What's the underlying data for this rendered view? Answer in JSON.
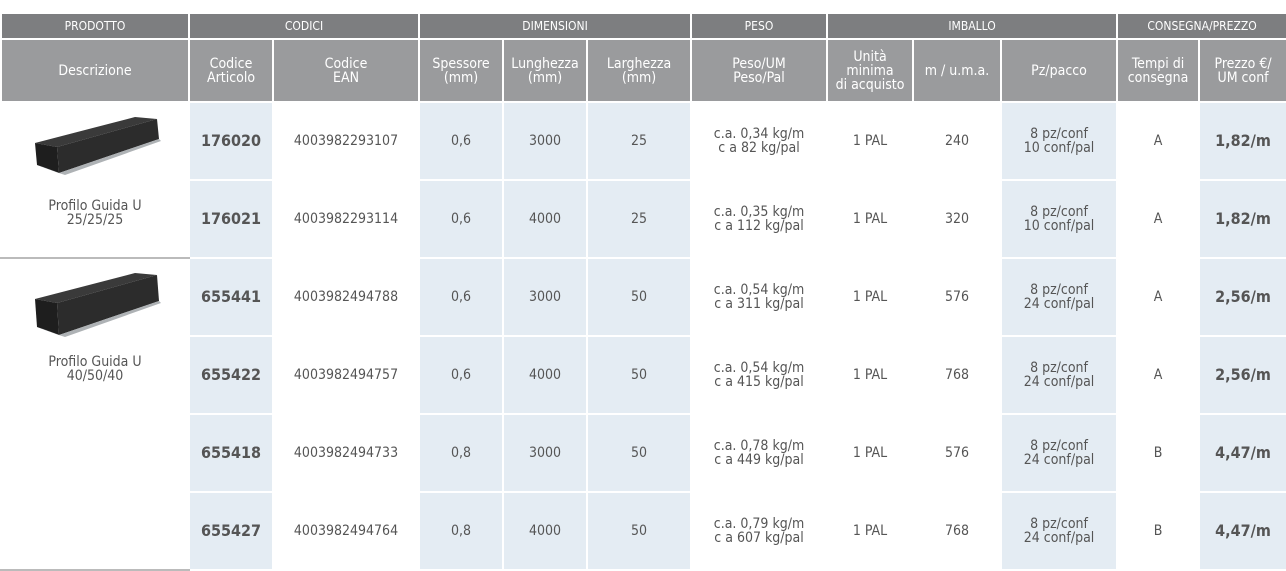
{
  "header_groups": [
    "PRODOTTO",
    "CODICI",
    "DIMENSIONI",
    "PESO",
    "IMBALLO",
    "CONSEGNA/PREZZO"
  ],
  "columns": [
    [
      "Descrizione"
    ],
    [
      "Codice",
      "Articolo"
    ],
    [
      "Codice",
      "EAN"
    ],
    [
      "Spessore",
      "(mm)"
    ],
    [
      "Lunghezza",
      "(mm)"
    ],
    [
      "Larghezza",
      "(mm)"
    ],
    [
      "Peso/UM",
      "Peso/Pal"
    ],
    [
      "Unità",
      "minima",
      "di acquisto"
    ],
    [
      "m / u.m.a."
    ],
    [
      "Pz/pacco"
    ],
    [
      "Tempi di",
      "consegna"
    ],
    [
      "Prezzo €/",
      "UM conf"
    ]
  ],
  "products": [
    {
      "description": [
        "Profilo Guida U",
        "25/25/25"
      ],
      "rows": [
        [
          "176020",
          "4003982293107",
          "0,6",
          "3000",
          "25",
          [
            "c.a. 0,34 kg/m",
            "c a 82 kg/pal"
          ],
          "1 PAL",
          "240",
          [
            "8 pz/conf",
            "10 conf/pal"
          ],
          "A",
          "1,82/m"
        ],
        [
          "176021",
          "4003982293114",
          "0,6",
          "4000",
          "25",
          [
            "c.a. 0,35 kg/m",
            "c a 112 kg/pal"
          ],
          "1 PAL",
          "320",
          [
            "8 pz/conf",
            "10 conf/pal"
          ],
          "A",
          "1,82/m"
        ]
      ]
    },
    {
      "description": [
        "Profilo Guida U",
        "40/50/40"
      ],
      "rows": [
        [
          "655441",
          "4003982494788",
          "0,6",
          "3000",
          "50",
          [
            "c.a. 0,54 kg/m",
            "c a 311 kg/pal"
          ],
          "1 PAL",
          "576",
          [
            "8 pz/conf",
            "24 conf/pal"
          ],
          "A",
          "2,56/m"
        ],
        [
          "655422",
          "4003982494757",
          "0,6",
          "4000",
          "50",
          [
            "c.a. 0,54 kg/m",
            "c a 415 kg/pal"
          ],
          "1 PAL",
          "768",
          [
            "8 pz/conf",
            "24 conf/pal"
          ],
          "A",
          "2,56/m"
        ],
        [
          "655418",
          "4003982494733",
          "0,8",
          "3000",
          "50",
          [
            "c.a. 0,78 kg/m",
            "c a 449 kg/pal"
          ],
          "1 PAL",
          "576",
          [
            "8 pz/conf",
            "24 conf/pal"
          ],
          "B",
          "4,47/m"
        ],
        [
          "655427",
          "4003982494764",
          "0,8",
          "4000",
          "50",
          [
            "c.a. 0,79 kg/m",
            "c a 607 kg/pal"
          ],
          "1 PAL",
          "768",
          [
            "8 pz/conf",
            "24 conf/pal"
          ],
          "B",
          "4,47/m"
        ]
      ]
    }
  ]
}
